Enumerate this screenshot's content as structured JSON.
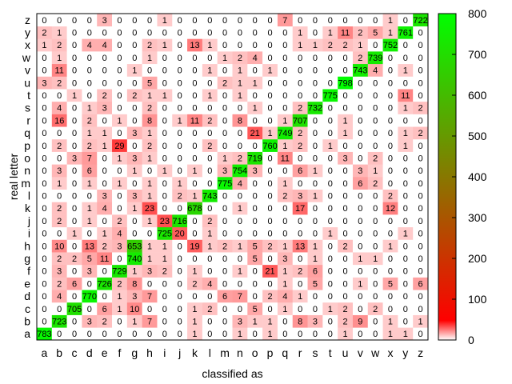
{
  "chart_data": {
    "type": "heatmap",
    "xlabel": "classified as",
    "ylabel": "real letter",
    "x_categories": [
      "a",
      "b",
      "c",
      "d",
      "e",
      "f",
      "g",
      "h",
      "i",
      "j",
      "k",
      "l",
      "m",
      "n",
      "o",
      "p",
      "q",
      "r",
      "s",
      "t",
      "u",
      "v",
      "w",
      "x",
      "y",
      "z"
    ],
    "y_categories": [
      "a",
      "b",
      "c",
      "d",
      "e",
      "f",
      "g",
      "h",
      "i",
      "j",
      "k",
      "l",
      "m",
      "n",
      "o",
      "p",
      "q",
      "r",
      "s",
      "t",
      "u",
      "v",
      "w",
      "x",
      "y",
      "z"
    ],
    "colorbar": {
      "range": [
        0,
        800
      ],
      "ticks": [
        "0",
        "100",
        "200",
        "300",
        "400",
        "500",
        "600",
        "700",
        "800"
      ],
      "colors": [
        "#ffffff",
        "#ff0000",
        "#00ff00"
      ]
    },
    "matrix": [
      [
        783,
        0,
        0,
        0,
        0,
        0,
        0,
        0,
        0,
        0,
        1,
        0,
        0,
        1,
        0,
        1,
        0,
        0,
        0,
        0,
        1,
        0,
        0,
        1,
        1,
        0
      ],
      [
        0,
        723,
        0,
        3,
        2,
        0,
        1,
        7,
        0,
        0,
        1,
        0,
        0,
        3,
        1,
        1,
        0,
        8,
        3,
        0,
        2,
        9,
        0,
        1,
        0,
        1
      ],
      [
        0,
        0,
        705,
        0,
        6,
        1,
        10,
        0,
        0,
        0,
        1,
        2,
        0,
        0,
        5,
        0,
        1,
        0,
        0,
        1,
        2,
        0,
        2,
        0,
        0,
        0
      ],
      [
        0,
        4,
        0,
        770,
        0,
        1,
        3,
        7,
        0,
        0,
        0,
        0,
        6,
        7,
        0,
        2,
        4,
        1,
        0,
        0,
        0,
        0,
        0,
        0,
        0,
        0
      ],
      [
        0,
        2,
        6,
        0,
        726,
        2,
        8,
        0,
        0,
        0,
        2,
        4,
        0,
        0,
        0,
        0,
        1,
        0,
        5,
        0,
        0,
        1,
        0,
        5,
        0,
        6
      ],
      [
        0,
        3,
        0,
        3,
        0,
        729,
        1,
        3,
        2,
        0,
        1,
        0,
        0,
        1,
        0,
        21,
        1,
        2,
        6,
        0,
        0,
        0,
        0,
        0,
        0,
        0
      ],
      [
        0,
        2,
        2,
        5,
        11,
        0,
        740,
        1,
        1,
        0,
        0,
        0,
        0,
        0,
        5,
        0,
        3,
        0,
        1,
        0,
        0,
        1,
        1,
        0,
        0,
        0
      ],
      [
        0,
        10,
        0,
        13,
        2,
        3,
        653,
        1,
        1,
        0,
        19,
        1,
        2,
        1,
        5,
        2,
        1,
        13,
        1,
        0,
        2,
        0,
        0,
        1,
        0,
        0
      ],
      [
        0,
        0,
        1,
        0,
        1,
        4,
        0,
        0,
        725,
        20,
        0,
        1,
        0,
        0,
        0,
        0,
        0,
        0,
        0,
        1,
        0,
        0,
        0,
        0,
        1,
        0
      ],
      [
        0,
        2,
        0,
        1,
        0,
        2,
        0,
        1,
        23,
        716,
        0,
        2,
        0,
        0,
        0,
        0,
        0,
        0,
        0,
        0,
        0,
        0,
        0,
        0,
        0,
        0
      ],
      [
        0,
        2,
        0,
        1,
        4,
        0,
        1,
        23,
        0,
        0,
        678,
        0,
        0,
        1,
        0,
        0,
        0,
        17,
        0,
        0,
        0,
        0,
        0,
        12,
        0,
        0
      ],
      [
        0,
        0,
        0,
        0,
        3,
        0,
        3,
        1,
        0,
        2,
        1,
        743,
        0,
        0,
        0,
        0,
        2,
        3,
        1,
        0,
        0,
        0,
        0,
        2,
        0,
        0
      ],
      [
        0,
        1,
        0,
        1,
        0,
        1,
        0,
        1,
        0,
        1,
        0,
        0,
        775,
        4,
        0,
        0,
        1,
        0,
        0,
        0,
        0,
        6,
        2,
        0,
        0,
        0
      ],
      [
        0,
        3,
        0,
        6,
        0,
        0,
        1,
        0,
        1,
        0,
        1,
        0,
        3,
        754,
        3,
        0,
        0,
        6,
        1,
        0,
        0,
        3,
        1,
        0,
        0,
        0
      ],
      [
        0,
        0,
        3,
        7,
        0,
        1,
        3,
        1,
        0,
        0,
        0,
        0,
        1,
        2,
        719,
        0,
        11,
        0,
        0,
        0,
        3,
        0,
        2,
        0,
        0,
        0
      ],
      [
        0,
        2,
        0,
        2,
        1,
        29,
        0,
        2,
        0,
        0,
        0,
        2,
        0,
        0,
        0,
        760,
        1,
        2,
        0,
        1,
        0,
        0,
        0,
        0,
        1,
        0
      ],
      [
        0,
        0,
        0,
        1,
        1,
        0,
        3,
        1,
        0,
        0,
        0,
        0,
        0,
        0,
        21,
        1,
        749,
        2,
        0,
        0,
        1,
        0,
        0,
        0,
        1,
        2
      ],
      [
        0,
        16,
        0,
        2,
        0,
        1,
        0,
        8,
        0,
        1,
        11,
        2,
        0,
        8,
        0,
        0,
        1,
        707,
        0,
        0,
        1,
        0,
        0,
        0,
        0,
        0
      ],
      [
        0,
        4,
        0,
        1,
        3,
        0,
        0,
        2,
        0,
        0,
        0,
        0,
        0,
        0,
        1,
        0,
        0,
        2,
        732,
        0,
        0,
        0,
        0,
        0,
        1,
        2
      ],
      [
        0,
        0,
        1,
        0,
        2,
        0,
        2,
        1,
        1,
        0,
        0,
        1,
        0,
        1,
        0,
        0,
        0,
        0,
        0,
        775,
        0,
        0,
        0,
        0,
        11,
        0
      ],
      [
        3,
        2,
        0,
        0,
        0,
        0,
        0,
        5,
        0,
        0,
        0,
        0,
        2,
        1,
        1,
        0,
        0,
        0,
        0,
        0,
        798,
        0,
        0,
        0,
        0,
        0
      ],
      [
        0,
        11,
        0,
        0,
        0,
        0,
        1,
        0,
        0,
        0,
        0,
        1,
        0,
        1,
        0,
        1,
        0,
        0,
        0,
        0,
        0,
        743,
        4,
        0,
        1,
        0
      ],
      [
        0,
        1,
        0,
        0,
        0,
        0,
        0,
        1,
        0,
        0,
        0,
        0,
        1,
        2,
        4,
        0,
        0,
        0,
        0,
        0,
        0,
        2,
        739,
        0,
        0,
        0
      ],
      [
        1,
        2,
        0,
        4,
        4,
        0,
        0,
        2,
        1,
        0,
        13,
        1,
        0,
        0,
        0,
        0,
        0,
        1,
        1,
        2,
        2,
        1,
        0,
        752,
        0,
        0
      ],
      [
        2,
        1,
        0,
        0,
        0,
        0,
        0,
        0,
        0,
        0,
        0,
        0,
        0,
        0,
        0,
        0,
        0,
        1,
        0,
        1,
        11,
        2,
        5,
        1,
        761,
        0
      ],
      [
        0,
        0,
        0,
        0,
        3,
        0,
        0,
        0,
        1,
        0,
        0,
        0,
        0,
        0,
        0,
        0,
        7,
        0,
        0,
        0,
        0,
        0,
        0,
        1,
        0,
        722
      ]
    ]
  }
}
